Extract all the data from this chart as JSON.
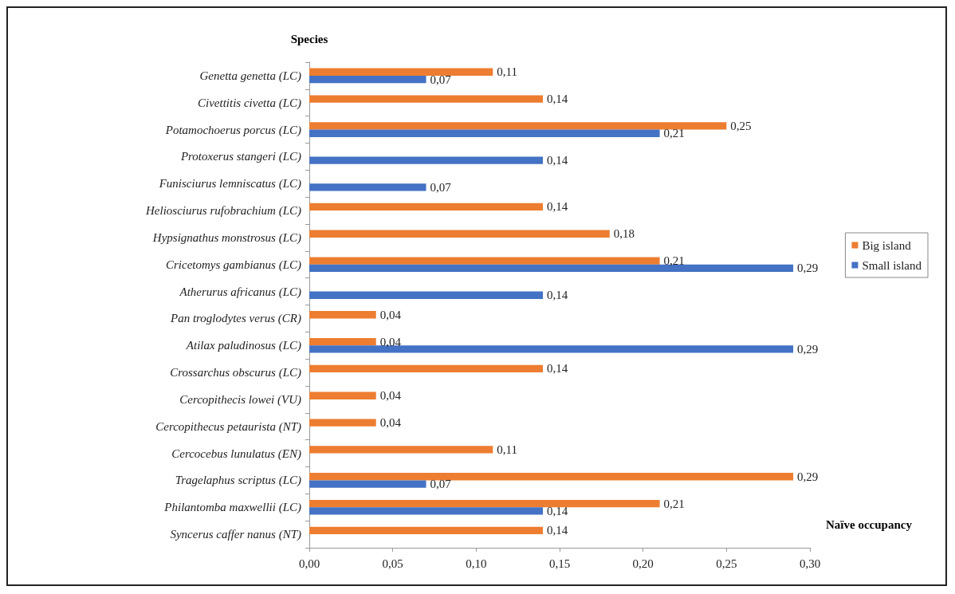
{
  "chart_data": {
    "type": "bar",
    "orientation": "horizontal",
    "xlabel": "Naïve occupancy",
    "ylabel": "Species",
    "categories": [
      "Genetta genetta (LC)",
      "Civettitis civetta (LC)",
      "Potamochoerus porcus (LC)",
      "Protoxerus stangeri (LC)",
      "Funisciurus lemniscatus (LC)",
      "Heliosciurus rufobrachium (LC)",
      "Hypsignathus monstrosus (LC)",
      "Cricetomys gambianus (LC)",
      "Atherurus africanus (LC)",
      "Pan troglodytes verus (CR)",
      "Atilax paludinosus (LC)",
      "Crossarchus obscurus (LC)",
      "Cercopithecis lowei (VU)",
      "Cercopithecus petaurista (NT)",
      "Cercocebus lunulatus (EN)",
      "Tragelaphus scriptus (LC)",
      "Philantomba maxwellii (LC)",
      "Syncerus caffer nanus (NT)"
    ],
    "series": [
      {
        "name": "Big island",
        "color": "#ed7d31",
        "values": [
          0.11,
          0.14,
          0.25,
          0,
          0,
          0.14,
          0.18,
          0.21,
          0,
          0.04,
          0.04,
          0.14,
          0.04,
          0.04,
          0.11,
          0.29,
          0.21,
          0.14
        ],
        "value_labels": [
          "0,11",
          "0,14",
          "0,25",
          null,
          null,
          "0,14",
          "0,18",
          "0,21",
          null,
          "0,04",
          "0,04",
          "0,14",
          "0,04",
          "0,04",
          "0,11",
          "0,29",
          "0,21",
          "0,14"
        ]
      },
      {
        "name": "Small island",
        "color": "#4472c4",
        "values": [
          0.07,
          0,
          0.21,
          0.14,
          0.07,
          0,
          0,
          0.29,
          0.14,
          0,
          0.29,
          0,
          0,
          0,
          0,
          0.07,
          0.14,
          0
        ],
        "value_labels": [
          "0,07",
          null,
          "0,21",
          "0,14",
          "0,07",
          null,
          null,
          "0,29",
          "0,14",
          null,
          "0,29",
          null,
          null,
          null,
          null,
          "0,07",
          "0,14",
          null
        ]
      }
    ],
    "xlim": [
      0,
      0.3
    ],
    "xticks": [
      {
        "value": 0,
        "label": "0,00"
      },
      {
        "value": 0.05,
        "label": "0,05"
      },
      {
        "value": 0.1,
        "label": "0,10"
      },
      {
        "value": 0.15,
        "label": "0,15"
      },
      {
        "value": 0.2,
        "label": "0,20"
      },
      {
        "value": 0.25,
        "label": "0,25"
      },
      {
        "value": 0.3,
        "label": "0,30"
      }
    ],
    "grid": false,
    "legend": "right"
  }
}
